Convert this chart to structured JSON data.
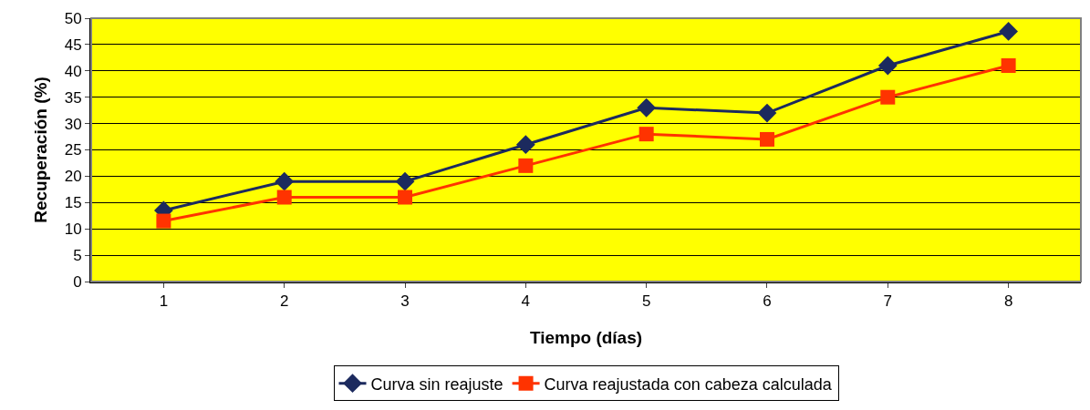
{
  "chart_data": {
    "type": "line",
    "xlabel": "Tiempo (días)",
    "ylabel": "Recuperación (%)",
    "categories": [
      "1",
      "2",
      "3",
      "4",
      "5",
      "6",
      "7",
      "8"
    ],
    "series": [
      {
        "name": "Curva sin reajuste",
        "color": "#1c2a5e",
        "marker": "diamond",
        "values": [
          13.5,
          19,
          19,
          26,
          33,
          32,
          41,
          47.5
        ]
      },
      {
        "name": "Curva reajustada con cabeza calculada",
        "color": "#ff3300",
        "marker": "square",
        "values": [
          11.5,
          16,
          16,
          22,
          28,
          27,
          35,
          41
        ]
      }
    ],
    "ylim": [
      0,
      50
    ],
    "yticks": [
      0,
      5,
      10,
      15,
      20,
      25,
      30,
      35,
      40,
      45,
      50
    ],
    "grid": "y",
    "legend": "bottom"
  }
}
